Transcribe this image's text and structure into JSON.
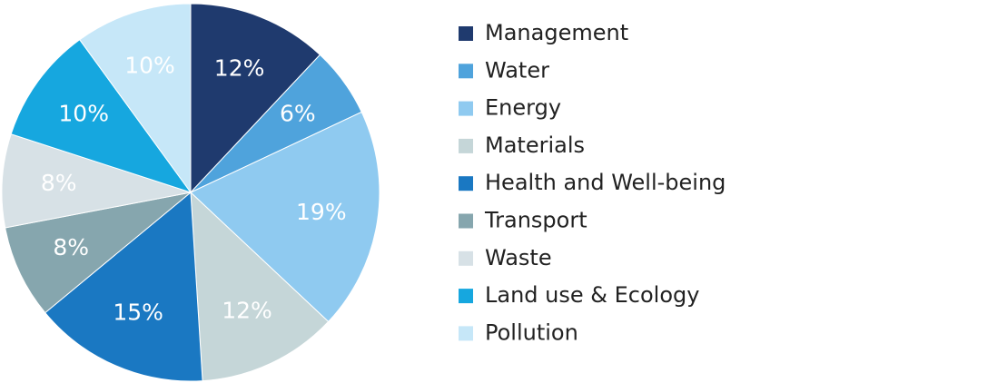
{
  "chart_data": {
    "type": "pie",
    "categories": [
      "Management",
      "Water",
      "Energy",
      "Materials",
      "Health and Well-being",
      "Transport",
      "Waste",
      "Land use & Ecology",
      "Pollution"
    ],
    "values": [
      12,
      6,
      19,
      12,
      15,
      8,
      8,
      10,
      10
    ],
    "value_labels": [
      "12%",
      "6%",
      "19%",
      "12%",
      "15%",
      "8%",
      "8%",
      "10%",
      "10%"
    ],
    "colors": [
      "#1f3a6e",
      "#4fa3dc",
      "#8fcaf0",
      "#c5d6d8",
      "#1a78c2",
      "#86a6ae",
      "#d7e1e6",
      "#16a7df",
      "#c6e7f8"
    ]
  }
}
